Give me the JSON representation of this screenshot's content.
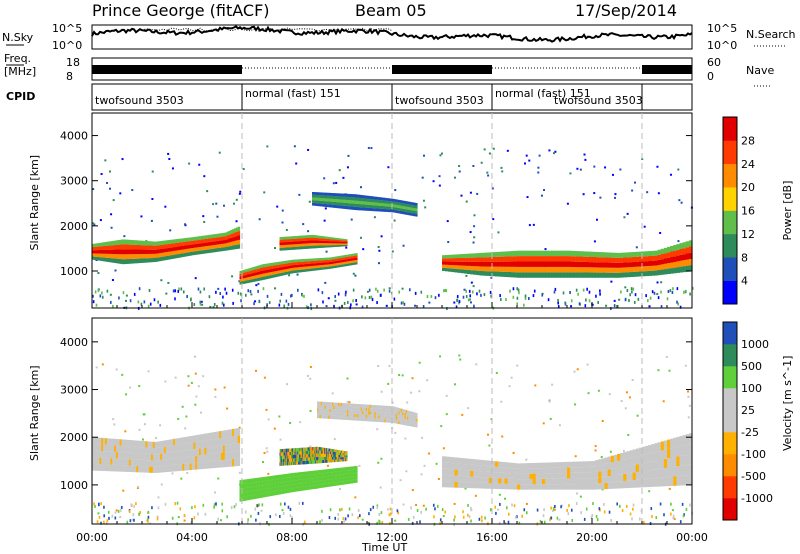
{
  "header": {
    "station": "Prince George (fitACF)",
    "beam": "Beam 05",
    "date": "17/Sep/2014"
  },
  "top_panels": {
    "nsky_label": "N.Sky",
    "nsearch_label": "N.Search",
    "nsky_ticks": [
      "10^5",
      "10^0"
    ],
    "nsearch_ticks": [
      "10^5",
      "10^0"
    ],
    "freq_label_1": "Freq.",
    "freq_label_2": "[MHz]",
    "freq_ticks": [
      "18",
      "8"
    ],
    "nave_label": "Nave",
    "nave_ticks": [
      "60",
      "0"
    ],
    "cpid_label": "CPID",
    "cpid_segments": [
      {
        "label": "twofsound 3503",
        "start": 0,
        "end": 6
      },
      {
        "label": "normal (fast) 151",
        "start": 6,
        "end": 12
      },
      {
        "label": "twofsound 3503",
        "start": 12,
        "end": 16
      },
      {
        "label": "normal (fast) 151",
        "start": 16,
        "end": 22
      },
      {
        "label": "twofsound 3503",
        "start": 18,
        "end": 22
      }
    ]
  },
  "chart_data": [
    {
      "type": "heatmap",
      "title": "Power",
      "ylabel": "Slant Range [km]",
      "xlabel": "Time UT",
      "xlim": [
        0,
        24
      ],
      "ylim": [
        180,
        4500
      ],
      "yticks": [
        "1000",
        "2000",
        "3000",
        "4000"
      ],
      "colorbar": {
        "label": "Power [dB]",
        "ticks": [
          "28",
          "24",
          "20",
          "16",
          "12",
          "8",
          "4"
        ],
        "colors": [
          "#0000ff",
          "#1f4fb8",
          "#2e8c5a",
          "#5fbf4a",
          "#ffd200",
          "#ff8c00",
          "#ff3b00",
          "#e00000"
        ]
      },
      "bands": [
        {
          "x": [
            0,
            1.2,
            2.5,
            4,
            5.3,
            5.9
          ],
          "y_low": [
            1250,
            1150,
            1200,
            1350,
            1450,
            1500
          ],
          "y_high": [
            1600,
            1700,
            1650,
            1750,
            1850,
            2000
          ],
          "level": "high"
        },
        {
          "x": [
            5.9,
            6.8,
            8,
            9.5,
            10.6
          ],
          "y_low": [
            700,
            800,
            950,
            1050,
            1150
          ],
          "y_high": [
            1000,
            1150,
            1250,
            1300,
            1400
          ],
          "level": "high"
        },
        {
          "x": [
            7.5,
            8.8,
            10.2
          ],
          "y_low": [
            1450,
            1500,
            1550
          ],
          "y_high": [
            1750,
            1800,
            1700
          ],
          "level": "high"
        },
        {
          "x": [
            8.8,
            10.5,
            12,
            13
          ],
          "y_low": [
            2450,
            2350,
            2300,
            2200
          ],
          "y_high": [
            2750,
            2700,
            2600,
            2500
          ],
          "level": "low"
        },
        {
          "x": [
            14,
            15.5,
            17,
            19,
            21,
            22.5,
            24
          ],
          "y_low": [
            1000,
            900,
            850,
            850,
            850,
            900,
            1000
          ],
          "y_high": [
            1350,
            1400,
            1450,
            1450,
            1400,
            1450,
            1700
          ],
          "level": "high"
        }
      ]
    },
    {
      "type": "heatmap",
      "title": "Velocity",
      "ylabel": "Slant Range [km]",
      "xlabel": "Time UT",
      "xlim": [
        0,
        24
      ],
      "ylim": [
        180,
        4500
      ],
      "yticks": [
        "1000",
        "2000",
        "3000",
        "4000"
      ],
      "xticks": [
        "00:00",
        "04:00",
        "08:00",
        "12:00",
        "16:00",
        "20:00",
        "00:00"
      ],
      "colorbar": {
        "label": "Velocity [m s^-1]",
        "ticks": [
          "1000",
          "500",
          "100",
          "25",
          "-25",
          "-100",
          "-500",
          "-1000"
        ],
        "colors": [
          "#e00000",
          "#ff3b00",
          "#ff8c00",
          "#ffb000",
          "#c8c8c8",
          "#c8c8c8",
          "#5fcf3a",
          "#2e8c5a",
          "#1f4fb8"
        ]
      },
      "bands": [
        {
          "x": [
            0,
            2.5,
            5.9
          ],
          "y_low": [
            1300,
            1250,
            1400
          ],
          "y_high": [
            2000,
            1900,
            2200
          ],
          "level": "grey"
        },
        {
          "x": [
            5.9,
            8,
            10.6
          ],
          "y_low": [
            650,
            850,
            1050
          ],
          "y_high": [
            1100,
            1250,
            1400
          ],
          "level": "green"
        },
        {
          "x": [
            7.5,
            9,
            10.2
          ],
          "y_low": [
            1400,
            1450,
            1500
          ],
          "y_high": [
            1750,
            1800,
            1700
          ],
          "level": "mixed"
        },
        {
          "x": [
            9,
            12,
            13
          ],
          "y_low": [
            2400,
            2300,
            2200
          ],
          "y_high": [
            2750,
            2650,
            2500
          ],
          "level": "grey"
        },
        {
          "x": [
            14,
            17,
            20,
            24
          ],
          "y_low": [
            950,
            900,
            900,
            1000
          ],
          "y_high": [
            1600,
            1450,
            1500,
            2100
          ],
          "level": "grey"
        }
      ]
    }
  ]
}
